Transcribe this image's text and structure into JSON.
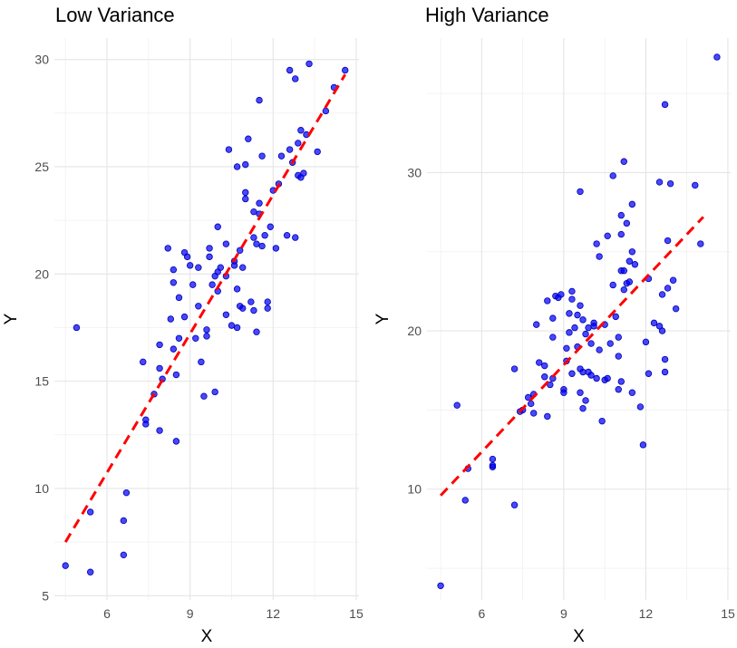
{
  "chart_data": [
    {
      "type": "scatter",
      "title": "Low Variance",
      "xlabel": "X",
      "ylabel": "Y",
      "xlim": [
        4.1,
        15.1
      ],
      "ylim": [
        4.8,
        31.0
      ],
      "x_ticks": [
        6,
        9,
        12,
        15
      ],
      "y_ticks": [
        5,
        10,
        15,
        20,
        25,
        30
      ],
      "grid": true,
      "point_color": "#0000ff",
      "trend_color": "#ff0000",
      "trend_line": {
        "x": [
          4.5,
          14.6
        ],
        "y": [
          7.5,
          29.3
        ]
      },
      "points": [
        [
          4.5,
          6.4
        ],
        [
          4.9,
          17.5
        ],
        [
          5.4,
          6.1
        ],
        [
          5.4,
          8.9
        ],
        [
          6.6,
          6.9
        ],
        [
          6.6,
          8.5
        ],
        [
          6.7,
          9.8
        ],
        [
          7.3,
          15.9
        ],
        [
          7.4,
          13.2
        ],
        [
          7.4,
          13.0
        ],
        [
          7.7,
          14.4
        ],
        [
          7.9,
          12.7
        ],
        [
          7.9,
          16.7
        ],
        [
          7.9,
          15.6
        ],
        [
          8.0,
          15.1
        ],
        [
          8.2,
          21.2
        ],
        [
          8.3,
          17.9
        ],
        [
          8.4,
          20.2
        ],
        [
          8.4,
          19.6
        ],
        [
          8.4,
          16.5
        ],
        [
          8.5,
          15.3
        ],
        [
          8.5,
          12.2
        ],
        [
          8.6,
          17.0
        ],
        [
          8.6,
          18.9
        ],
        [
          8.8,
          18.0
        ],
        [
          8.8,
          21.0
        ],
        [
          8.9,
          20.8
        ],
        [
          9.0,
          20.4
        ],
        [
          9.1,
          19.5
        ],
        [
          9.2,
          17.0
        ],
        [
          9.3,
          18.5
        ],
        [
          9.3,
          20.3
        ],
        [
          9.4,
          15.9
        ],
        [
          9.5,
          14.3
        ],
        [
          9.6,
          17.1
        ],
        [
          9.6,
          17.4
        ],
        [
          9.7,
          21.2
        ],
        [
          9.7,
          20.8
        ],
        [
          9.8,
          19.5
        ],
        [
          9.9,
          14.5
        ],
        [
          9.9,
          19.9
        ],
        [
          10.0,
          20.1
        ],
        [
          10.0,
          19.2
        ],
        [
          10.0,
          22.2
        ],
        [
          10.1,
          20.3
        ],
        [
          10.3,
          19.9
        ],
        [
          10.3,
          21.4
        ],
        [
          10.3,
          18.1
        ],
        [
          10.4,
          25.8
        ],
        [
          10.5,
          17.6
        ],
        [
          10.6,
          20.6
        ],
        [
          10.6,
          20.4
        ],
        [
          10.7,
          19.3
        ],
        [
          10.7,
          17.5
        ],
        [
          10.7,
          25.0
        ],
        [
          10.8,
          21.1
        ],
        [
          10.8,
          18.5
        ],
        [
          10.9,
          18.4
        ],
        [
          10.9,
          20.3
        ],
        [
          11.0,
          23.5
        ],
        [
          11.0,
          23.8
        ],
        [
          11.0,
          25.1
        ],
        [
          11.1,
          26.3
        ],
        [
          11.2,
          18.7
        ],
        [
          11.3,
          21.7
        ],
        [
          11.3,
          18.3
        ],
        [
          11.3,
          22.9
        ],
        [
          11.4,
          17.3
        ],
        [
          11.4,
          21.4
        ],
        [
          11.5,
          23.3
        ],
        [
          11.5,
          22.8
        ],
        [
          11.5,
          28.1
        ],
        [
          11.6,
          21.3
        ],
        [
          11.6,
          25.5
        ],
        [
          11.7,
          21.8
        ],
        [
          11.8,
          18.7
        ],
        [
          11.8,
          18.4
        ],
        [
          11.9,
          22.2
        ],
        [
          12.0,
          23.9
        ],
        [
          12.1,
          21.2
        ],
        [
          12.2,
          24.2
        ],
        [
          12.3,
          25.5
        ],
        [
          12.5,
          21.8
        ],
        [
          12.6,
          29.5
        ],
        [
          12.6,
          25.8
        ],
        [
          12.7,
          25.2
        ],
        [
          12.8,
          29.1
        ],
        [
          12.8,
          21.7
        ],
        [
          12.9,
          24.6
        ],
        [
          12.9,
          26.1
        ],
        [
          13.0,
          24.5
        ],
        [
          13.0,
          26.7
        ],
        [
          13.1,
          24.7
        ],
        [
          13.2,
          26.5
        ],
        [
          13.3,
          29.8
        ],
        [
          13.6,
          25.7
        ],
        [
          13.9,
          27.6
        ],
        [
          14.2,
          28.7
        ],
        [
          14.6,
          29.5
        ]
      ]
    },
    {
      "type": "scatter",
      "title": "High Variance",
      "xlabel": "X",
      "ylabel": "Y",
      "xlim": [
        4.0,
        15.1
      ],
      "ylim": [
        3.0,
        38.5
      ],
      "x_ticks": [
        6,
        9,
        12,
        15
      ],
      "y_ticks": [
        10,
        20,
        30
      ],
      "grid": true,
      "point_color": "#0000ff",
      "trend_color": "#ff0000",
      "trend_line": {
        "x": [
          4.5,
          14.1
        ],
        "y": [
          9.6,
          27.2
        ]
      },
      "points": [
        [
          4.5,
          3.9
        ],
        [
          5.1,
          15.3
        ],
        [
          5.4,
          9.3
        ],
        [
          5.5,
          11.3
        ],
        [
          6.4,
          11.4
        ],
        [
          6.4,
          11.5
        ],
        [
          6.4,
          11.9
        ],
        [
          7.2,
          9.0
        ],
        [
          7.2,
          17.6
        ],
        [
          7.4,
          14.9
        ],
        [
          7.5,
          15.0
        ],
        [
          7.7,
          15.8
        ],
        [
          7.8,
          15.4
        ],
        [
          7.9,
          16.0
        ],
        [
          7.9,
          14.8
        ],
        [
          8.0,
          20.4
        ],
        [
          8.1,
          18.0
        ],
        [
          8.3,
          17.8
        ],
        [
          8.3,
          17.1
        ],
        [
          8.4,
          14.6
        ],
        [
          8.4,
          21.9
        ],
        [
          8.5,
          16.6
        ],
        [
          8.6,
          20.8
        ],
        [
          8.6,
          19.6
        ],
        [
          8.6,
          17.0
        ],
        [
          8.7,
          22.2
        ],
        [
          8.8,
          22.1
        ],
        [
          8.9,
          22.3
        ],
        [
          9.0,
          16.3
        ],
        [
          9.0,
          16.1
        ],
        [
          9.1,
          18.9
        ],
        [
          9.1,
          18.1
        ],
        [
          9.2,
          19.9
        ],
        [
          9.2,
          21.1
        ],
        [
          9.3,
          22.0
        ],
        [
          9.3,
          22.5
        ],
        [
          9.3,
          17.3
        ],
        [
          9.4,
          20.2
        ],
        [
          9.5,
          21.0
        ],
        [
          9.5,
          19.0
        ],
        [
          9.6,
          28.8
        ],
        [
          9.6,
          16.1
        ],
        [
          9.6,
          17.6
        ],
        [
          9.6,
          21.6
        ],
        [
          9.7,
          20.7
        ],
        [
          9.7,
          17.4
        ],
        [
          9.7,
          15.1
        ],
        [
          9.8,
          15.6
        ],
        [
          9.8,
          19.8
        ],
        [
          9.9,
          17.4
        ],
        [
          9.9,
          20.2
        ],
        [
          10.0,
          19.2
        ],
        [
          10.0,
          17.2
        ],
        [
          10.1,
          20.5
        ],
        [
          10.1,
          20.3
        ],
        [
          10.2,
          25.5
        ],
        [
          10.2,
          17.0
        ],
        [
          10.3,
          18.8
        ],
        [
          10.3,
          24.7
        ],
        [
          10.4,
          14.3
        ],
        [
          10.5,
          16.9
        ],
        [
          10.5,
          20.4
        ],
        [
          10.6,
          26.0
        ],
        [
          10.6,
          17.0
        ],
        [
          10.7,
          19.2
        ],
        [
          10.8,
          22.9
        ],
        [
          10.8,
          29.8
        ],
        [
          10.9,
          20.9
        ],
        [
          11.0,
          16.3
        ],
        [
          11.0,
          18.4
        ],
        [
          11.0,
          19.6
        ],
        [
          11.1,
          26.1
        ],
        [
          11.1,
          27.3
        ],
        [
          11.1,
          16.8
        ],
        [
          11.1,
          23.8
        ],
        [
          11.2,
          30.7
        ],
        [
          11.2,
          23.8
        ],
        [
          11.2,
          22.6
        ],
        [
          11.3,
          23.0
        ],
        [
          11.3,
          26.8
        ],
        [
          11.4,
          24.4
        ],
        [
          11.4,
          23.1
        ],
        [
          11.5,
          28.0
        ],
        [
          11.5,
          16.1
        ],
        [
          11.5,
          25.0
        ],
        [
          11.6,
          24.2
        ],
        [
          11.8,
          15.2
        ],
        [
          11.9,
          12.8
        ],
        [
          12.0,
          19.3
        ],
        [
          12.1,
          23.3
        ],
        [
          12.1,
          17.3
        ],
        [
          12.3,
          20.5
        ],
        [
          12.5,
          29.4
        ],
        [
          12.5,
          20.3
        ],
        [
          12.6,
          20.0
        ],
        [
          12.6,
          22.3
        ],
        [
          12.7,
          34.3
        ],
        [
          12.7,
          17.4
        ],
        [
          12.7,
          18.2
        ],
        [
          12.8,
          25.7
        ],
        [
          12.8,
          22.7
        ],
        [
          12.9,
          29.3
        ],
        [
          13.0,
          23.2
        ],
        [
          13.1,
          21.4
        ],
        [
          13.8,
          29.2
        ],
        [
          14.0,
          25.5
        ],
        [
          14.6,
          37.3
        ]
      ]
    }
  ]
}
